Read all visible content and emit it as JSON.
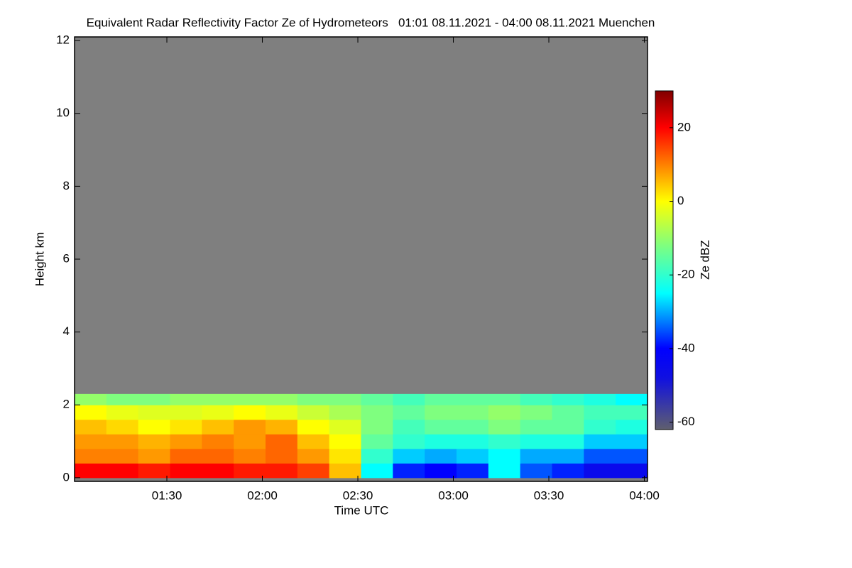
{
  "chart_data": {
    "type": "heatmap",
    "title": "Equivalent Radar Reflectivity Factor Ze of Hydrometeors   01:01 08.11.2021 - 04:00 08.11.2021 Muenchen",
    "xlabel": "Time UTC",
    "ylabel": "Height km",
    "colorbar_label": "Ze dBZ",
    "xlim": [
      "01:01",
      "04:01"
    ],
    "xticks": [
      "01:30",
      "02:00",
      "02:30",
      "03:00",
      "03:30",
      "04:00"
    ],
    "ylim": [
      -0.1,
      12.1
    ],
    "yticks": [
      0,
      2,
      4,
      6,
      8,
      10,
      12
    ],
    "clim": [
      -62,
      30
    ],
    "cticks": [
      20,
      0,
      -20,
      -40,
      -60
    ],
    "background": "#7f7f7f",
    "colorscale": [
      [
        -62,
        "#5f5f6e"
      ],
      [
        -48,
        "#1010e0"
      ],
      [
        -40,
        "#0000ff"
      ],
      [
        -25,
        "#00ffff"
      ],
      [
        -12,
        "#7fff7f"
      ],
      [
        0,
        "#ffff00"
      ],
      [
        10,
        "#ff8000"
      ],
      [
        20,
        "#ff0000"
      ],
      [
        30,
        "#800000"
      ]
    ],
    "xbins": [
      "01:01",
      "01:11",
      "01:21",
      "01:31",
      "01:41",
      "01:51",
      "02:01",
      "02:11",
      "02:21",
      "02:31",
      "02:41",
      "02:51",
      "03:01",
      "03:11",
      "03:21",
      "03:31",
      "03:41",
      "03:51",
      "04:01"
    ],
    "ybins": [
      0,
      0.4,
      0.8,
      1.2,
      1.6,
      2.0,
      2.3
    ],
    "z": [
      [
        20,
        20,
        18,
        20,
        20,
        18,
        18,
        15,
        5,
        -25,
        -38,
        -40,
        -38,
        -25,
        -35,
        -38,
        -45,
        -45
      ],
      [
        10,
        10,
        8,
        12,
        12,
        10,
        12,
        8,
        2,
        -20,
        -28,
        -30,
        -28,
        -25,
        -30,
        -30,
        -35,
        -35
      ],
      [
        8,
        8,
        6,
        8,
        10,
        8,
        12,
        5,
        0,
        -15,
        -20,
        -22,
        -22,
        -20,
        -22,
        -22,
        -28,
        -28
      ],
      [
        5,
        3,
        0,
        2,
        5,
        8,
        6,
        0,
        -3,
        -12,
        -18,
        -15,
        -15,
        -12,
        -15,
        -15,
        -20,
        -22
      ],
      [
        0,
        -2,
        -3,
        -3,
        -2,
        0,
        -2,
        -5,
        -8,
        -12,
        -15,
        -12,
        -12,
        -10,
        -12,
        -15,
        -18,
        -18
      ],
      [
        -10,
        -12,
        -12,
        -10,
        -10,
        -10,
        -10,
        -12,
        -12,
        -15,
        -18,
        -15,
        -15,
        -15,
        -18,
        -20,
        -22,
        -25
      ]
    ]
  }
}
